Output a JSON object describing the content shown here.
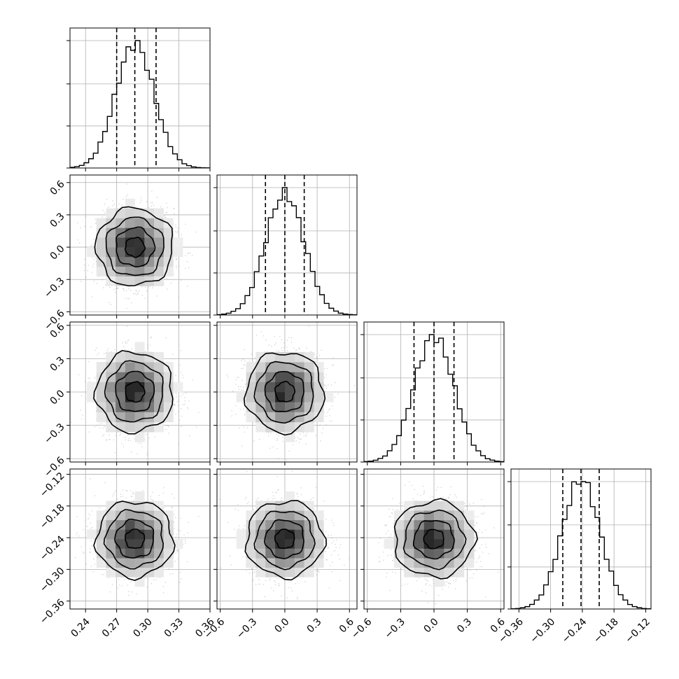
{
  "chart_data": {
    "type": "corner",
    "title": "",
    "parameters": [
      {
        "ticks": [
          0.24,
          0.27,
          0.3,
          0.33,
          0.36
        ],
        "tick_labels": [
          "0.24",
          "0.27",
          "0.30",
          "0.33",
          "0.36"
        ],
        "range": [
          0.225,
          0.36
        ],
        "quantiles": [
          0.27,
          0.2875,
          0.308
        ],
        "mean": 0.2875,
        "sd": 0.0185,
        "hist_y_ticks": [
          0.0,
          0.33,
          0.66,
          1.0
        ]
      },
      {
        "ticks": [
          -0.6,
          -0.3,
          0.0,
          0.3,
          0.6
        ],
        "tick_labels": [
          "−0.6",
          "−0.3",
          "0.0",
          "0.3",
          "0.6"
        ],
        "range": [
          -0.63,
          0.67
        ],
        "quantiles": [
          -0.18,
          0.0,
          0.18
        ],
        "mean": 0.0,
        "sd": 0.18,
        "hist_y_ticks": [
          0.0,
          0.33,
          0.66,
          1.0
        ]
      },
      {
        "ticks": [
          -0.6,
          -0.3,
          0.0,
          0.3,
          0.6
        ],
        "tick_labels": [
          "−0.6",
          "−0.3",
          "0.0",
          "0.3",
          "0.6"
        ],
        "range": [
          -0.63,
          0.63
        ],
        "quantiles": [
          -0.18,
          0.0,
          0.18
        ],
        "mean": 0.0,
        "sd": 0.18,
        "hist_y_ticks": [
          0.0,
          0.33,
          0.66,
          1.0
        ]
      },
      {
        "ticks": [
          -0.36,
          -0.3,
          -0.24,
          -0.18,
          -0.12
        ],
        "tick_labels": [
          "−0.36",
          "−0.30",
          "−0.24",
          "−0.18",
          "−0.12"
        ],
        "range": [
          -0.375,
          -0.11
        ],
        "quantiles": [
          -0.277,
          -0.2425,
          -0.208
        ],
        "mean": -0.2425,
        "sd": 0.036,
        "hist_y_ticks": [
          0.0,
          0.33,
          0.66,
          1.0
        ]
      }
    ],
    "histogram_bins": 30,
    "contour_levels_sigma": [
      0.5,
      1.0,
      1.5,
      2.0
    ],
    "grid": true,
    "colors": {
      "ink": "#000000",
      "grid": "#b0b0b0",
      "scatter": "#9a9a9a"
    }
  }
}
